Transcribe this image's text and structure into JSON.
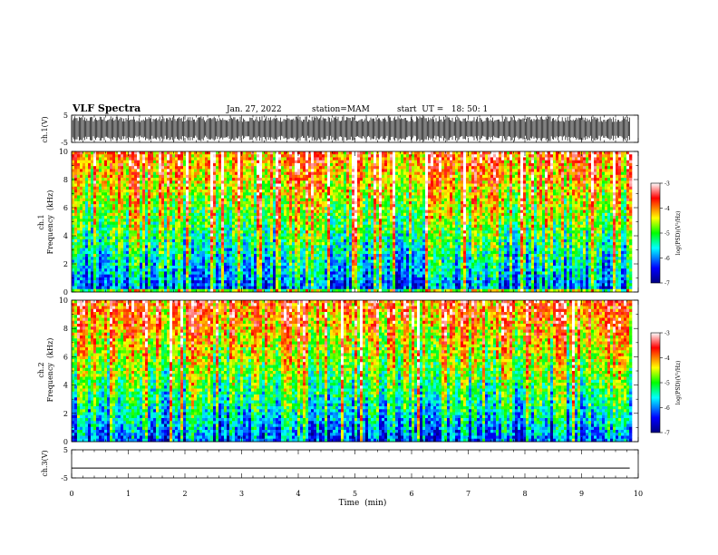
{
  "header": {
    "title": "VLF Spectra",
    "date": "Jan. 27, 2022",
    "station": "station=MAM",
    "start_ut": "start  UT =   18: 50: 1"
  },
  "chart_data": [
    {
      "type": "line",
      "name": "ch1-waveform",
      "ylabel": "ch.1(V)",
      "ylim": [
        -5,
        5
      ],
      "yticks": [
        "5",
        "-5"
      ],
      "xlim": [
        0,
        10
      ],
      "note": "dense black waveform filling most of the panel, x from 0 to ~9.85 min"
    },
    {
      "type": "heatmap",
      "name": "ch1-spectrogram",
      "ylabel": "ch.1\nFrequency (kHz)",
      "ylim": [
        0,
        10
      ],
      "yticks": [
        "0",
        "2",
        "4",
        "6",
        "8",
        "10"
      ],
      "xlim": [
        0,
        10
      ],
      "x_data_end": 9.85,
      "colorbar": {
        "label": "log(PSD)(V²/Hz)",
        "range": [
          -7,
          -3
        ],
        "ticks": [
          "-3",
          "-4",
          "-5",
          "-6",
          "-7"
        ]
      }
    },
    {
      "type": "heatmap",
      "name": "ch2-spectrogram",
      "ylabel": "ch.2\nFrequency (kHz)",
      "ylim": [
        0,
        10
      ],
      "yticks": [
        "0",
        "2",
        "4",
        "6",
        "8",
        "10"
      ],
      "xlim": [
        0,
        10
      ],
      "x_data_end": 9.85,
      "colorbar": {
        "label": "log(PSD)(V²/Hz)",
        "range": [
          -7,
          -3
        ],
        "ticks": [
          "-3",
          "-4",
          "-5",
          "-6",
          "-7"
        ]
      }
    },
    {
      "type": "line",
      "name": "ch3-waveform",
      "ylabel": "ch.3(V)",
      "ylim": [
        -5,
        5
      ],
      "yticks": [
        "5",
        "-5"
      ],
      "xlim": [
        0,
        10
      ],
      "x": [
        0,
        9.85
      ],
      "y": [
        -1.5,
        -1.5
      ]
    }
  ],
  "xaxis": {
    "label": "Time  (min)",
    "ticks": [
      "0",
      "1",
      "2",
      "3",
      "4",
      "5",
      "6",
      "7",
      "8",
      "9",
      "10"
    ]
  },
  "labels": {
    "ch1_v": "ch.1(V)",
    "ch1_a": "ch.1",
    "ch1_b": "Frequency  (kHz)",
    "ch2_a": "ch.2",
    "ch2_b": "Frequency  (kHz)",
    "ch3_v": "ch.3(V)",
    "cbar": "log(PSD)(V²/Hz)"
  },
  "colors": {
    "colormap": [
      "#000080",
      "#0000ff",
      "#00ffff",
      "#00ff00",
      "#ffff00",
      "#ff0000",
      "#ffffff"
    ],
    "axis": "#000000"
  }
}
